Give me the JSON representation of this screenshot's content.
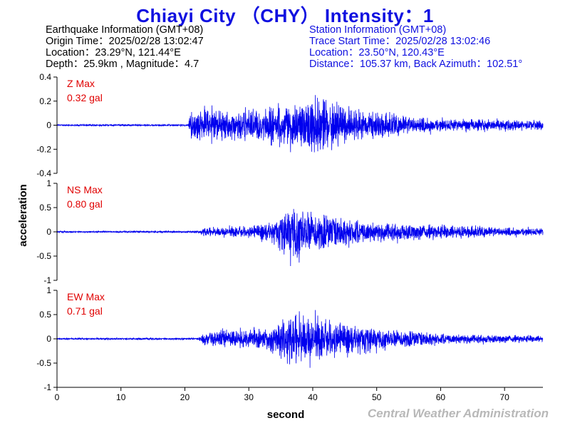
{
  "title": "Chiayi City （CHY） Intensity：1",
  "earthquake_info": {
    "heading": "Earthquake Information  (GMT+08)",
    "origin_time": "Origin Time：2025/02/28 13:02:47",
    "location": "Location：23.29°N, 121.44°E",
    "depth_magnitude": "Depth：25.9km , Magnitude：4.7"
  },
  "station_info": {
    "heading": "Station Information  (GMT+08)",
    "trace_start": "Trace Start Time：2025/02/28 13:02:46",
    "location": "Location：23.50°N, 120.43°E",
    "distance": "Distance：105.37 km, Back Azimuth：102.51°"
  },
  "footer": "Central Weather Administration",
  "colors": {
    "title": "#1010e0",
    "trace": "#0000ee",
    "max_label": "#e00000",
    "axis": "#000000"
  },
  "chart_data": {
    "type": "line",
    "xlabel": "second",
    "ylabel": "acceleration",
    "xlim": [
      0,
      76
    ],
    "x_ticks": [
      "0",
      "10",
      "20",
      "30",
      "40",
      "50",
      "60",
      "70"
    ],
    "panels": [
      {
        "component": "Z",
        "max_label": "Z Max",
        "max_value": "0.32 gal",
        "ylim": [
          -0.4,
          0.4
        ],
        "y_ticks": [
          "0.4",
          "0.2",
          "0",
          "-0.2",
          "-0.4"
        ],
        "y_tick_values": [
          0.4,
          0.2,
          0,
          -0.2,
          -0.4
        ],
        "envelope": [
          [
            0,
            0.01
          ],
          [
            20.5,
            0.01
          ],
          [
            21,
            0.15
          ],
          [
            24,
            0.18
          ],
          [
            30,
            0.18
          ],
          [
            38,
            0.26
          ],
          [
            42,
            0.32
          ],
          [
            45,
            0.2
          ],
          [
            50,
            0.14
          ],
          [
            60,
            0.07
          ],
          [
            76,
            0.05
          ]
        ]
      },
      {
        "component": "NS",
        "max_label": "NS Max",
        "max_value": "0.80 gal",
        "ylim": [
          -1,
          1
        ],
        "y_ticks": [
          "1",
          "0.5",
          "0",
          "-0.5",
          "-1"
        ],
        "y_tick_values": [
          1,
          0.5,
          0,
          -0.5,
          -1
        ],
        "envelope": [
          [
            0,
            0.02
          ],
          [
            22,
            0.03
          ],
          [
            23,
            0.12
          ],
          [
            30,
            0.15
          ],
          [
            34,
            0.3
          ],
          [
            36,
            0.6
          ],
          [
            37,
            0.8
          ],
          [
            40,
            0.55
          ],
          [
            44,
            0.4
          ],
          [
            50,
            0.28
          ],
          [
            60,
            0.18
          ],
          [
            76,
            0.1
          ]
        ]
      },
      {
        "component": "EW",
        "max_label": "EW Max",
        "max_value": "0.71 gal",
        "ylim": [
          -1,
          1
        ],
        "y_ticks": [
          "1",
          "0.5",
          "0",
          "-0.5",
          "-1"
        ],
        "y_tick_values": [
          1,
          0.5,
          0,
          -0.5,
          -1
        ],
        "envelope": [
          [
            0,
            0.02
          ],
          [
            22,
            0.03
          ],
          [
            23,
            0.2
          ],
          [
            30,
            0.25
          ],
          [
            34,
            0.4
          ],
          [
            36,
            0.7
          ],
          [
            39,
            0.7
          ],
          [
            42,
            0.5
          ],
          [
            50,
            0.3
          ],
          [
            60,
            0.15
          ],
          [
            76,
            0.08
          ]
        ]
      }
    ]
  }
}
